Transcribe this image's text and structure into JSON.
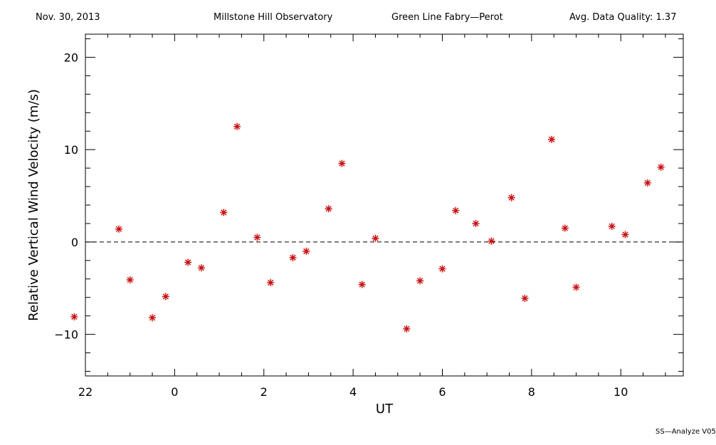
{
  "header": {
    "date": "Nov. 30, 2013",
    "observatory": "Millstone Hill Observatory",
    "instrument": "Green Line Fabry—Perot",
    "quality": "Avg. Data Quality: 1.37"
  },
  "footer": "SS—Analyze V05",
  "colors": {
    "marker": "#e00000",
    "axis": "#000000"
  },
  "chart_data": {
    "type": "scatter",
    "xlabel": "UT",
    "ylabel": "Relative Vertical Wind Velocity (m/s)",
    "xlim": [
      -2.0,
      11.4
    ],
    "ylim": [
      -14.5,
      22.5
    ],
    "x_ticks": [
      22,
      0,
      2,
      4,
      6,
      8,
      10
    ],
    "y_ticks": [
      -10,
      0,
      10,
      20
    ],
    "reference_line": {
      "y": 0,
      "style": "dashed"
    },
    "marker": "asterisk",
    "series": [
      {
        "x": [
          21.75,
          22.75,
          23.0,
          23.5,
          23.8,
          0.3,
          0.6,
          1.1,
          1.4,
          1.85,
          2.15,
          2.65,
          2.95,
          3.45,
          3.75,
          4.2,
          4.5,
          5.2,
          5.5,
          6.0,
          6.3,
          6.75,
          7.1,
          7.55,
          7.85,
          8.45,
          8.75,
          9.0,
          9.8,
          10.1,
          10.6,
          10.9
        ],
        "y": [
          -8.1,
          1.4,
          -4.1,
          -8.2,
          -5.9,
          -2.2,
          -2.8,
          3.2,
          12.5,
          0.5,
          -4.4,
          -1.7,
          -1.0,
          3.6,
          8.5,
          -4.6,
          0.4,
          -9.4,
          -4.2,
          -2.9,
          3.4,
          2.0,
          0.1,
          4.8,
          -6.1,
          11.1,
          1.5,
          -4.9,
          1.7,
          0.8,
          6.4,
          8.1
        ]
      }
    ]
  }
}
